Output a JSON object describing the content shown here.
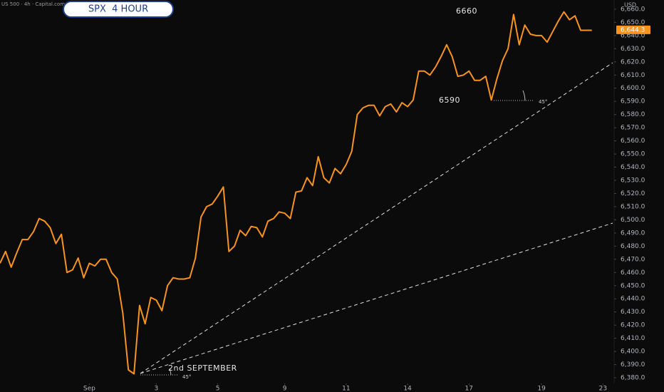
{
  "chart_data": {
    "type": "line",
    "title": "SPX  4 HOUR",
    "subtitle": "US 500 · 4h · Capital.com",
    "currency": "USD",
    "annotations": [
      "6660",
      "6590",
      "2nd SEPTEMBER",
      "45°",
      "45°"
    ],
    "last_price": {
      "value": 6644.3,
      "label": "6,644.3"
    },
    "x": [
      0,
      1,
      2,
      3,
      4,
      5,
      6,
      7,
      8,
      9,
      10,
      11,
      12,
      13,
      14,
      15,
      16,
      17,
      18,
      19,
      20,
      21,
      22,
      23,
      24,
      25,
      26,
      27,
      28,
      29,
      30,
      31,
      32,
      33,
      34,
      35,
      36,
      37,
      38,
      39,
      40,
      41,
      42,
      43,
      44,
      45,
      46,
      47,
      48,
      49,
      50,
      51,
      52,
      53,
      54,
      55,
      56,
      57,
      58,
      59,
      60,
      61,
      62,
      63,
      64,
      65,
      66,
      67,
      68,
      69,
      70,
      71,
      72,
      73,
      74,
      75,
      76,
      77,
      78,
      79,
      80,
      81,
      82,
      83,
      84,
      85,
      86,
      87,
      88,
      89,
      90,
      91,
      92,
      93,
      94,
      95,
      96,
      97,
      98,
      99,
      100,
      101,
      102,
      103,
      104,
      105,
      106
    ],
    "series": [
      {
        "name": "SPX",
        "color": "#f7931e",
        "values": [
          6467,
          6476,
          6464,
          6475,
          6485,
          6485,
          6491,
          6501,
          6499,
          6494,
          6482,
          6489,
          6460,
          6462,
          6471,
          6456,
          6467,
          6465,
          6470,
          6470,
          6460,
          6455,
          6429,
          6386,
          6383,
          6435,
          6421,
          6441,
          6439,
          6431,
          6450,
          6456,
          6455,
          6455,
          6456,
          6471,
          6502,
          6510,
          6512,
          6518,
          6525,
          6476,
          6480,
          6492,
          6488,
          6495,
          6494,
          6487,
          6499,
          6501,
          6506,
          6505,
          6501,
          6521,
          6522,
          6532,
          6526,
          6548,
          6532,
          6528,
          6539,
          6535,
          6542,
          6552,
          6580,
          6585,
          6587,
          6587,
          6579,
          6586,
          6588,
          6582,
          6589,
          6586,
          6591,
          6613,
          6613,
          6610,
          6616,
          6624,
          6633,
          6624,
          6609,
          6610,
          6613,
          6606,
          6606,
          6609,
          6591,
          6607,
          6621,
          6630,
          6656,
          6633,
          6648,
          6641,
          6640,
          6640,
          6635,
          6643,
          6651,
          6658,
          6652,
          6655,
          6644,
          6644,
          6644
        ]
      }
    ],
    "xlim": [
      0,
      110
    ],
    "xticks": [
      {
        "value": 16,
        "label": "Sep"
      },
      {
        "value": 28,
        "label": "3"
      },
      {
        "value": 39,
        "label": "5"
      },
      {
        "value": 51,
        "label": "9"
      },
      {
        "value": 62,
        "label": "11"
      },
      {
        "value": 73,
        "label": "14"
      },
      {
        "value": 84,
        "label": "17"
      },
      {
        "value": 97,
        "label": "19"
      },
      {
        "value": 108,
        "label": "23"
      }
    ],
    "ylim": [
      6375.7,
      6667.0
    ],
    "yticks": [
      {
        "value": 6380,
        "label": "6,380.0"
      },
      {
        "value": 6390,
        "label": "6,390.0"
      },
      {
        "value": 6400,
        "label": "6,400.0"
      },
      {
        "value": 6410,
        "label": "6,410.0"
      },
      {
        "value": 6420,
        "label": "6,420.0"
      },
      {
        "value": 6430,
        "label": "6,430.0"
      },
      {
        "value": 6440,
        "label": "6,440.0"
      },
      {
        "value": 6450,
        "label": "6,450.0"
      },
      {
        "value": 6460,
        "label": "6,460.0"
      },
      {
        "value": 6470,
        "label": "6,470.0"
      },
      {
        "value": 6480,
        "label": "6,480.0"
      },
      {
        "value": 6490,
        "label": "6,490.0"
      },
      {
        "value": 6500,
        "label": "6,500.0"
      },
      {
        "value": 6510,
        "label": "6,510.0"
      },
      {
        "value": 6520,
        "label": "6,520.0"
      },
      {
        "value": 6530,
        "label": "6,530.0"
      },
      {
        "value": 6540,
        "label": "6,540.0"
      },
      {
        "value": 6550,
        "label": "6,550.0"
      },
      {
        "value": 6560,
        "label": "6,560.0"
      },
      {
        "value": 6570,
        "label": "6,570.0"
      },
      {
        "value": 6580,
        "label": "6,580.0"
      },
      {
        "value": 6590,
        "label": "6,590.0"
      },
      {
        "value": 6600,
        "label": "6,600.0"
      },
      {
        "value": 6610,
        "label": "6,610.0"
      },
      {
        "value": 6620,
        "label": "6,620.0"
      },
      {
        "value": 6630,
        "label": "6,630.0"
      },
      {
        "value": 6640,
        "label": "6,640.0"
      },
      {
        "value": 6650,
        "label": "6,650.0"
      },
      {
        "value": 6660,
        "label": "6,660.0"
      }
    ],
    "grid": false
  }
}
